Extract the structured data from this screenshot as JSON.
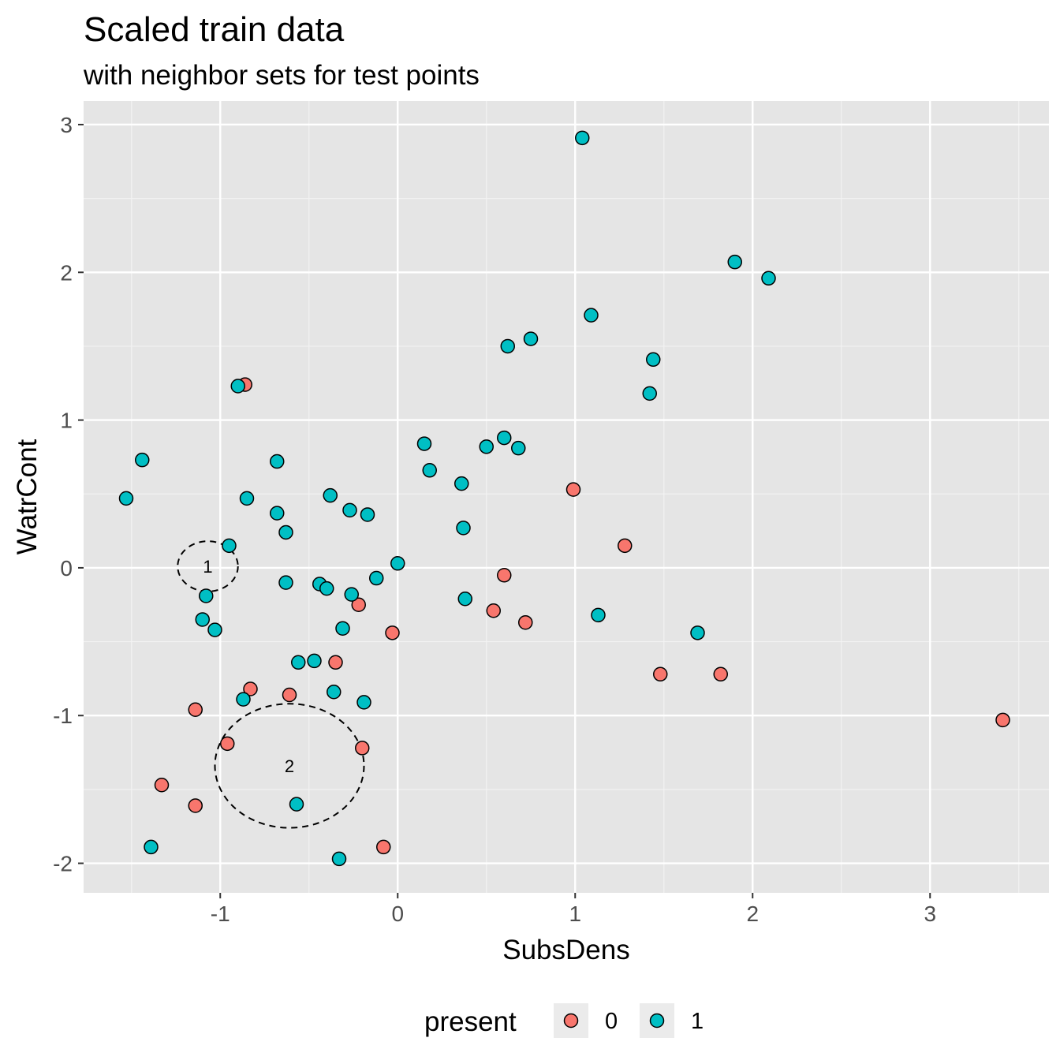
{
  "chart_data": {
    "type": "scatter",
    "title": "Scaled train data",
    "subtitle": "with neighbor sets for test points",
    "xlabel": "SubsDens",
    "ylabel": "WatrCont",
    "xlim": [
      -1.77,
      3.67
    ],
    "ylim": [
      -2.2,
      3.16
    ],
    "xticks": [
      -1,
      0,
      1,
      2,
      3
    ],
    "yticks": [
      -2,
      -1,
      0,
      1,
      2,
      3
    ],
    "grid": true,
    "legend": {
      "title": "present",
      "position": "bottom",
      "entries": [
        {
          "label": "0",
          "color": "#F8766D"
        },
        {
          "label": "1",
          "color": "#00BFC4"
        }
      ]
    },
    "series": [
      {
        "name": "0",
        "color": "#F8766D",
        "points": [
          [
            -0.86,
            1.24
          ],
          [
            0.99,
            0.53
          ],
          [
            1.28,
            0.15
          ],
          [
            0.6,
            -0.05
          ],
          [
            -0.22,
            -0.25
          ],
          [
            0.54,
            -0.29
          ],
          [
            0.72,
            -0.37
          ],
          [
            -0.03,
            -0.44
          ],
          [
            -0.35,
            -0.64
          ],
          [
            1.48,
            -0.72
          ],
          [
            1.82,
            -0.72
          ],
          [
            -0.83,
            -0.82
          ],
          [
            -0.61,
            -0.86
          ],
          [
            -1.14,
            -0.96
          ],
          [
            3.41,
            -1.03
          ],
          [
            -0.96,
            -1.19
          ],
          [
            -0.2,
            -1.22
          ],
          [
            -1.33,
            -1.47
          ],
          [
            -1.14,
            -1.61
          ],
          [
            -0.08,
            -1.89
          ]
        ]
      },
      {
        "name": "1",
        "color": "#00BFC4",
        "points": [
          [
            1.04,
            2.91
          ],
          [
            1.9,
            2.07
          ],
          [
            2.09,
            1.96
          ],
          [
            1.09,
            1.71
          ],
          [
            0.62,
            1.5
          ],
          [
            0.75,
            1.55
          ],
          [
            1.44,
            1.41
          ],
          [
            1.42,
            1.18
          ],
          [
            -0.9,
            1.23
          ],
          [
            -1.44,
            0.73
          ],
          [
            -1.53,
            0.47
          ],
          [
            -0.68,
            0.72
          ],
          [
            -0.85,
            0.47
          ],
          [
            0.15,
            0.84
          ],
          [
            0.18,
            0.66
          ],
          [
            0.5,
            0.82
          ],
          [
            0.6,
            0.88
          ],
          [
            0.68,
            0.81
          ],
          [
            0.36,
            0.57
          ],
          [
            -0.38,
            0.49
          ],
          [
            -0.27,
            0.39
          ],
          [
            -0.17,
            0.36
          ],
          [
            -0.68,
            0.37
          ],
          [
            -0.63,
            0.24
          ],
          [
            0.37,
            0.27
          ],
          [
            -0.95,
            0.15
          ],
          [
            0.0,
            0.03
          ],
          [
            -1.08,
            -0.19
          ],
          [
            -0.63,
            -0.1
          ],
          [
            -0.44,
            -0.11
          ],
          [
            -0.4,
            -0.14
          ],
          [
            -0.26,
            -0.18
          ],
          [
            -0.12,
            -0.07
          ],
          [
            0.38,
            -0.21
          ],
          [
            -1.1,
            -0.35
          ],
          [
            -1.03,
            -0.42
          ],
          [
            -0.31,
            -0.41
          ],
          [
            1.13,
            -0.32
          ],
          [
            1.69,
            -0.44
          ],
          [
            -0.56,
            -0.64
          ],
          [
            -0.47,
            -0.63
          ],
          [
            -0.87,
            -0.89
          ],
          [
            -0.36,
            -0.84
          ],
          [
            -0.19,
            -0.91
          ],
          [
            -0.57,
            -1.6
          ],
          [
            -1.39,
            -1.89
          ],
          [
            -0.33,
            -1.97
          ]
        ]
      }
    ],
    "neighbor_sets": [
      {
        "label": "1",
        "center": [
          -1.07,
          0.01
        ],
        "radius": 0.17
      },
      {
        "label": "2",
        "center": [
          -0.61,
          -1.34
        ],
        "radius": 0.42
      }
    ]
  }
}
